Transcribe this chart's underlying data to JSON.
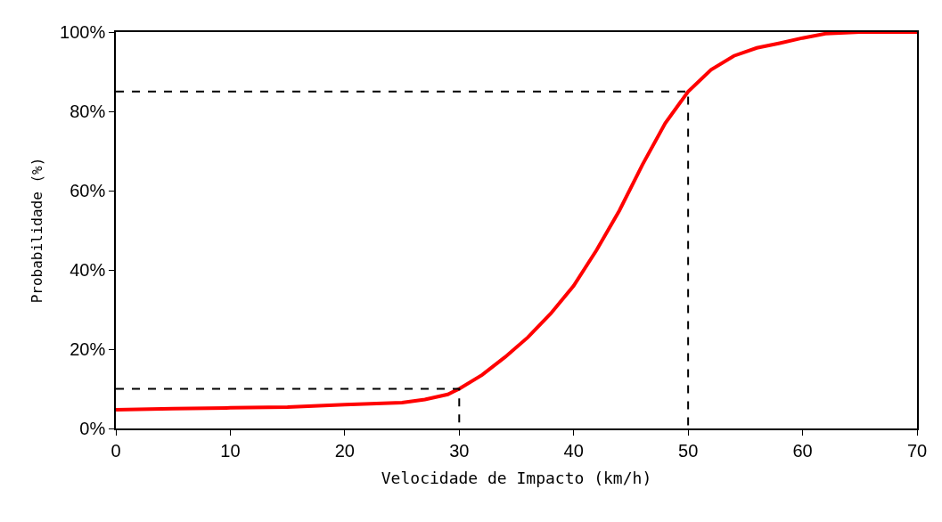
{
  "chart_data": {
    "type": "line",
    "xlabel": "Velocidade de Impacto (km/h)",
    "ylabel": "Probabilidade (%)",
    "xlim": [
      0,
      70
    ],
    "xticks": [
      0,
      10,
      20,
      30,
      40,
      50,
      60,
      70
    ],
    "ylim": [
      0,
      100
    ],
    "yticks": [
      {
        "value": 0,
        "label": "0%"
      },
      {
        "value": 20,
        "label": "20%"
      },
      {
        "value": 40,
        "label": "40%"
      },
      {
        "value": 60,
        "label": "60%"
      },
      {
        "value": 80,
        "label": "80%"
      },
      {
        "value": 100,
        "label": "100%"
      }
    ],
    "marker": "none",
    "series": [
      {
        "color": "#ff0000",
        "line_style": "solid",
        "x": [
          0,
          5,
          10,
          15,
          20,
          25,
          27,
          29,
          30,
          32,
          34,
          36,
          38,
          40,
          42,
          44,
          46,
          48,
          50,
          52,
          54,
          56,
          58,
          60,
          62,
          65,
          70
        ],
        "values": [
          4.7,
          5,
          5.2,
          5.4,
          6,
          6.5,
          7.3,
          8.6,
          10,
          13.5,
          18,
          23,
          29,
          36,
          45,
          55,
          66.5,
          77,
          85,
          90.5,
          94,
          96,
          97.2,
          98.5,
          99.6,
          100,
          100
        ]
      },
      {
        "color": "#000000",
        "line_style": "dashed",
        "x": [
          0,
          30,
          30
        ],
        "values": [
          10,
          10,
          0
        ]
      },
      {
        "color": "#000000",
        "line_style": "dashed",
        "x": [
          0,
          50,
          50
        ],
        "values": [
          85,
          85,
          0
        ]
      }
    ]
  }
}
